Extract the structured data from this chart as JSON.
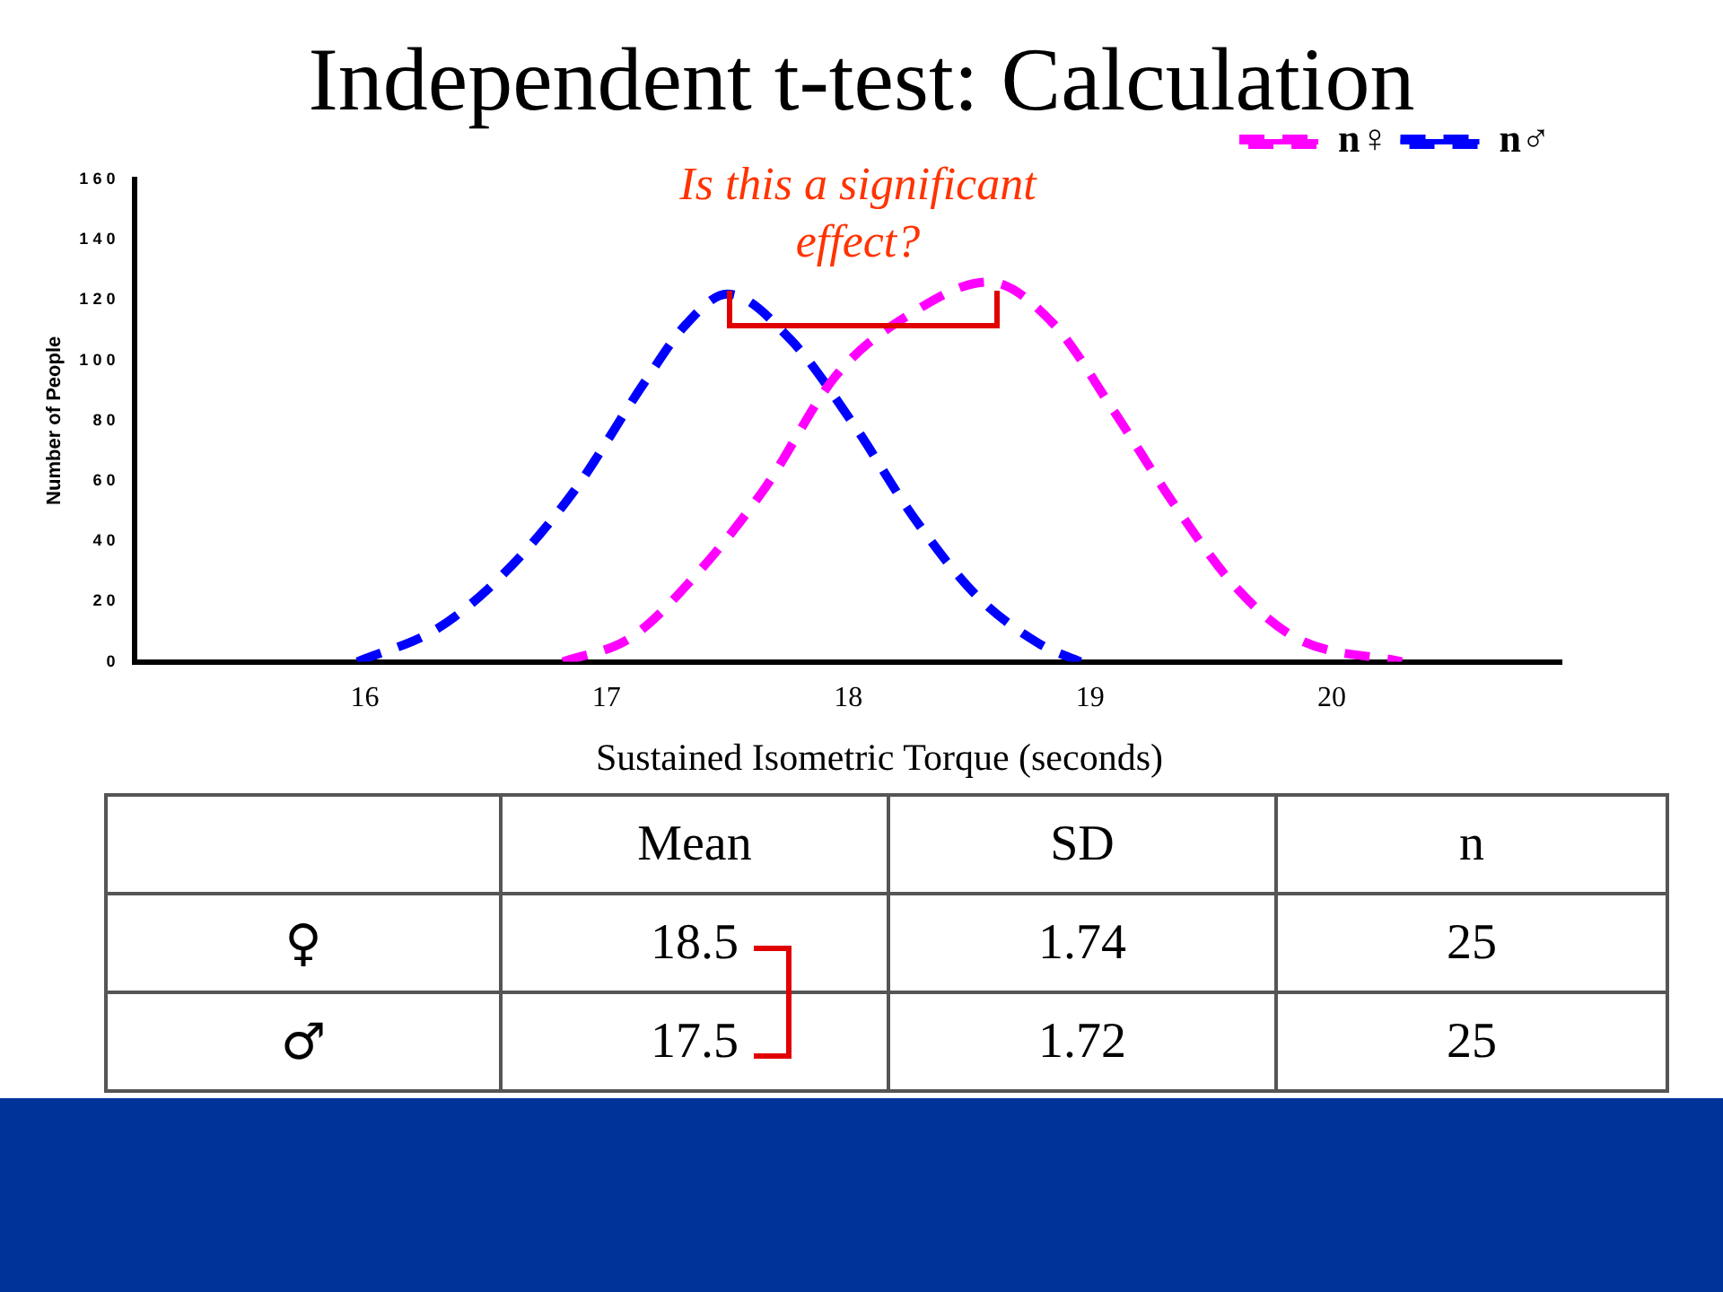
{
  "chart_data": [
    {
      "type": "line",
      "title": "Independent t-test: Calculation",
      "xlabel": "Sustained Isometric Torque (seconds)",
      "ylabel": "Number of People",
      "annotations": [
        "Is this a significant effect?"
      ],
      "xlim": [
        15.05,
        20.95
      ],
      "xticks": [
        16,
        17,
        18,
        19,
        20
      ],
      "ylim": [
        0,
        160
      ],
      "yticks": [
        0,
        20,
        40,
        60,
        80,
        100,
        120,
        140,
        160
      ],
      "grid": false,
      "legend": "top right",
      "line_style": "dashed",
      "marker": "none",
      "series": [
        {
          "name": "n♀",
          "color": "#ff00ff",
          "x": [
            16.82,
            17.1,
            17.35,
            17.65,
            17.95,
            18.25,
            18.58,
            18.85,
            19.1,
            19.35,
            19.6,
            19.85,
            20.29
          ],
          "values": [
            0,
            8,
            27,
            57,
            95,
            115,
            126,
            112,
            83,
            52,
            25,
            8,
            0
          ]
        },
        {
          "name": "n♂",
          "color": "#0000ff",
          "x": [
            15.97,
            16.3,
            16.56,
            16.86,
            17.16,
            17.33,
            17.5,
            17.76,
            18.02,
            18.27,
            18.53,
            18.79,
            18.96
          ],
          "values": [
            0,
            11,
            28,
            56,
            93,
            112,
            122,
            107,
            79,
            48,
            22,
            6,
            0
          ]
        }
      ]
    },
    {
      "type": "heatmap",
      "data_labels": true,
      "categories": [
        "Mean",
        "SD",
        "n"
      ],
      "y_categories": [
        "♀",
        "♂"
      ],
      "cells": [
        [
          18.5,
          1.74,
          25
        ],
        [
          17.5,
          1.72,
          25
        ]
      ]
    }
  ]
}
